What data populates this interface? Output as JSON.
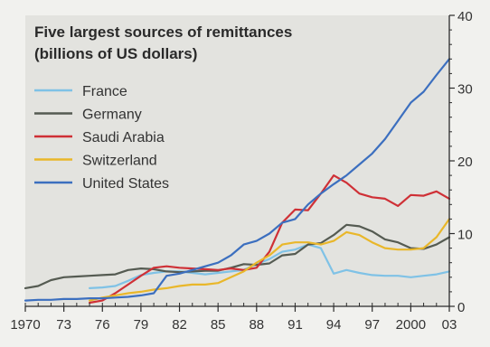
{
  "chart_data": {
    "type": "line",
    "title": "Five largest sources of remittances",
    "subtitle": "(billions of US dollars)",
    "xlabel": "",
    "ylabel": "",
    "xlim": [
      1970,
      2003
    ],
    "ylim": [
      0,
      40
    ],
    "grid": false,
    "legend_position": "top-left",
    "y_axis_side": "right",
    "x_tick_values": [
      1970,
      1973,
      1976,
      1979,
      1982,
      1985,
      1988,
      1991,
      1994,
      1997,
      2000,
      2003
    ],
    "x_tick_labels": [
      "1970",
      "73",
      "76",
      "79",
      "82",
      "85",
      "88",
      "91",
      "94",
      "97",
      "2000",
      "03"
    ],
    "y_tick_values": [
      0,
      10,
      20,
      30,
      40
    ],
    "y_tick_labels": [
      "0",
      "10",
      "20",
      "30",
      "40"
    ],
    "series": [
      {
        "name": "France",
        "color": "#7fc2e6",
        "x": [
          1975,
          1976,
          1977,
          1978,
          1979,
          1980,
          1981,
          1982,
          1983,
          1984,
          1985,
          1986,
          1987,
          1988,
          1989,
          1990,
          1991,
          1992,
          1993,
          1994,
          1995,
          1996,
          1997,
          1998,
          1999,
          2000,
          2001,
          2002,
          2003
        ],
        "y": [
          2.5,
          2.6,
          2.8,
          3.5,
          4.3,
          4.6,
          4.8,
          4.8,
          4.6,
          4.4,
          4.6,
          4.8,
          5.0,
          5.8,
          6.5,
          7.5,
          7.8,
          8.5,
          8.0,
          4.5,
          5.0,
          4.6,
          4.3,
          4.2,
          4.2,
          4.0,
          4.2,
          4.4,
          4.8
        ]
      },
      {
        "name": "Germany",
        "color": "#555b52",
        "x": [
          1970,
          1971,
          1972,
          1973,
          1974,
          1975,
          1976,
          1977,
          1978,
          1979,
          1980,
          1981,
          1982,
          1983,
          1984,
          1985,
          1986,
          1987,
          1988,
          1989,
          1990,
          1991,
          1992,
          1993,
          1994,
          1995,
          1996,
          1997,
          1998,
          1999,
          2000,
          2001,
          2002,
          2003
        ],
        "y": [
          2.5,
          2.8,
          3.6,
          4.0,
          4.1,
          4.2,
          4.3,
          4.4,
          5.0,
          5.2,
          5.1,
          4.8,
          4.7,
          4.8,
          4.9,
          4.9,
          5.3,
          5.8,
          5.7,
          5.9,
          7.0,
          7.2,
          8.5,
          8.7,
          9.8,
          11.2,
          11.0,
          10.3,
          9.2,
          8.8,
          8.0,
          7.9,
          8.5,
          9.5
        ]
      },
      {
        "name": "Saudi Arabia",
        "color": "#cf3036",
        "x": [
          1975,
          1976,
          1977,
          1978,
          1979,
          1980,
          1981,
          1982,
          1983,
          1984,
          1985,
          1986,
          1987,
          1988,
          1989,
          1990,
          1991,
          1992,
          1993,
          1994,
          1995,
          1996,
          1997,
          1998,
          1999,
          2000,
          2001,
          2002,
          2003
        ],
        "y": [
          0.5,
          0.8,
          1.8,
          3.0,
          4.2,
          5.3,
          5.5,
          5.3,
          5.2,
          5.1,
          5.0,
          5.2,
          5.0,
          5.3,
          7.5,
          11.5,
          13.3,
          13.2,
          15.5,
          18.0,
          17.0,
          15.5,
          15.0,
          14.8,
          13.8,
          15.3,
          15.2,
          15.8,
          14.8
        ]
      },
      {
        "name": "Switzerland",
        "color": "#e9b72a",
        "x": [
          1975,
          1976,
          1977,
          1978,
          1979,
          1980,
          1981,
          1982,
          1983,
          1984,
          1985,
          1986,
          1987,
          1988,
          1989,
          1990,
          1991,
          1992,
          1993,
          1994,
          1995,
          1996,
          1997,
          1998,
          1999,
          2000,
          2001,
          2002,
          2003
        ],
        "y": [
          0.8,
          1.2,
          1.5,
          1.8,
          2.0,
          2.3,
          2.5,
          2.8,
          3.0,
          3.0,
          3.2,
          4.0,
          4.8,
          6.0,
          7.0,
          8.5,
          8.8,
          8.8,
          8.5,
          9.0,
          10.2,
          9.8,
          8.8,
          8.0,
          7.8,
          7.8,
          8.0,
          9.5,
          12.0
        ]
      },
      {
        "name": "United States",
        "color": "#3c6fbf",
        "x": [
          1970,
          1971,
          1972,
          1973,
          1974,
          1975,
          1976,
          1977,
          1978,
          1979,
          1980,
          1981,
          1982,
          1983,
          1984,
          1985,
          1986,
          1987,
          1988,
          1989,
          1990,
          1991,
          1992,
          1993,
          1994,
          1995,
          1996,
          1997,
          1998,
          1999,
          2000,
          2001,
          2002,
          2003
        ],
        "y": [
          0.8,
          0.9,
          0.9,
          1.0,
          1.0,
          1.1,
          1.1,
          1.2,
          1.3,
          1.5,
          1.8,
          4.2,
          4.5,
          5.0,
          5.5,
          6.0,
          7.0,
          8.5,
          9.0,
          10.0,
          11.5,
          12.0,
          14.0,
          15.5,
          16.8,
          18.0,
          19.5,
          21.0,
          23.0,
          25.5,
          28.0,
          29.5,
          31.8,
          34.0
        ]
      }
    ]
  }
}
